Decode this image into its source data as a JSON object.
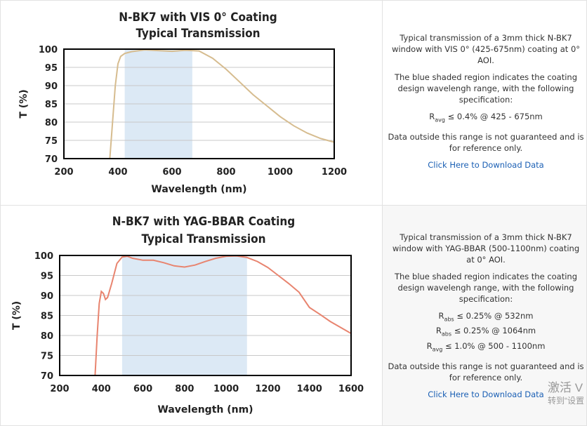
{
  "chart_data": [
    {
      "type": "line",
      "title": "N-BK7 with VIS 0° Coating",
      "subtitle": "Typical Transmission",
      "xlabel": "Wavelength (nm)",
      "ylabel": "T (%)",
      "xlim": [
        200,
        1200
      ],
      "xticks": [
        200,
        400,
        600,
        800,
        1000,
        1200
      ],
      "ylim": [
        70,
        100
      ],
      "yticks": [
        70,
        75,
        80,
        85,
        90,
        95,
        100
      ],
      "grid": true,
      "shaded_range": [
        425,
        675
      ],
      "shade_color": "#dce9f5",
      "color": "#d6bc8f",
      "x": [
        370,
        380,
        390,
        400,
        410,
        425,
        450,
        500,
        550,
        600,
        650,
        700,
        750,
        800,
        850,
        900,
        950,
        1000,
        1050,
        1100,
        1150,
        1200
      ],
      "values": [
        70,
        80,
        90,
        96,
        98,
        98.8,
        99.3,
        99.8,
        99.6,
        99.4,
        99.7,
        99.5,
        97.5,
        94.5,
        91,
        87.5,
        84.5,
        81.5,
        79,
        77,
        75.5,
        74.5
      ]
    },
    {
      "type": "line",
      "title": "N-BK7 with YAG-BBAR Coating",
      "subtitle": "Typical Transmission",
      "xlabel": "Wavelength (nm)",
      "ylabel": "T (%)",
      "xlim": [
        200,
        1600
      ],
      "xticks": [
        200,
        400,
        600,
        800,
        1000,
        1200,
        1400,
        1600
      ],
      "ylim": [
        70,
        100
      ],
      "yticks": [
        70,
        75,
        80,
        85,
        90,
        95,
        100
      ],
      "grid": true,
      "shaded_range": [
        500,
        1100
      ],
      "shade_color": "#dce9f5",
      "color": "#e8846f",
      "x": [
        370,
        380,
        390,
        400,
        410,
        420,
        430,
        450,
        475,
        500,
        525,
        550,
        600,
        650,
        700,
        750,
        800,
        850,
        900,
        950,
        1000,
        1050,
        1100,
        1150,
        1200,
        1250,
        1300,
        1350,
        1400,
        1450,
        1500,
        1550,
        1600
      ],
      "values": [
        70,
        80,
        88,
        91,
        90.5,
        89,
        89.5,
        93,
        98,
        99.6,
        99.8,
        99.3,
        98.8,
        98.8,
        98.2,
        97.4,
        97.1,
        97.6,
        98.5,
        99.3,
        99.8,
        99.9,
        99.5,
        98.5,
        97,
        95,
        93,
        90.8,
        87,
        85.3,
        83.5,
        82,
        80.5
      ]
    }
  ],
  "panels": [
    {
      "intro": "Typical transmission of a 3mm thick N-BK7 window with VIS 0° (425-675nm) coating at 0° AOI.",
      "shading_note": "The blue shaded region indicates the coating design wavelengh range, with the following specification:",
      "specs": [
        {
          "symbol": "R",
          "sub": "avg",
          "text": "≤ 0.4% @ 425 - 675nm"
        }
      ],
      "disclaimer": "Data outside this range is not guaranteed and is for reference only.",
      "link": "Click Here to Download Data"
    },
    {
      "intro": "Typical transmission of a 3mm thick N-BK7 window with YAG-BBAR (500-1100nm) coating at 0° AOI.",
      "shading_note": "The blue shaded region indicates the coating design wavelengh range, with the following specification:",
      "specs": [
        {
          "symbol": "R",
          "sub": "abs",
          "text": "≤ 0.25% @ 532nm"
        },
        {
          "symbol": "R",
          "sub": "abs",
          "text": "≤ 0.25% @ 1064nm"
        },
        {
          "symbol": "R",
          "sub": "avg",
          "text": "≤ 1.0% @ 500 - 1100nm"
        }
      ],
      "disclaimer": "Data outside this range is not guaranteed and is for reference only.",
      "link": "Click Here to Download Data"
    }
  ],
  "watermark": [
    "激活 V",
    "转到“设置"
  ]
}
